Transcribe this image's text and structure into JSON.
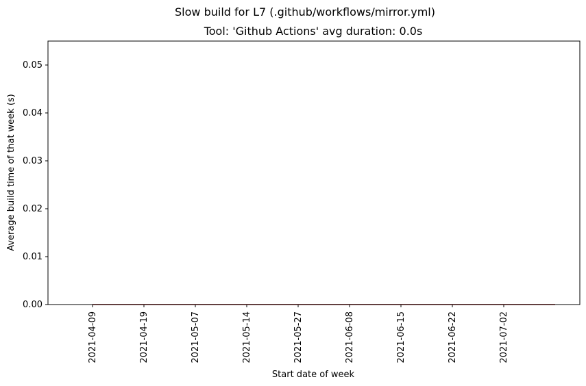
{
  "chart_data": {
    "type": "line",
    "suptitle": "Slow build for L7 (.github/workflows/mirror.yml)",
    "title": "Tool: 'Github Actions' avg duration: 0.0s",
    "xlabel": "Start date of week",
    "ylabel": "Average build time of that week (s)",
    "x": [
      "2021-04-09",
      "2021-04-19",
      "2021-05-07",
      "2021-05-14",
      "2021-05-27",
      "2021-06-08",
      "2021-06-15",
      "2021-06-22",
      "2021-07-02",
      ""
    ],
    "xticks": [
      "2021-04-09",
      "2021-04-19",
      "2021-05-07",
      "2021-05-14",
      "2021-05-27",
      "2021-06-08",
      "2021-06-15",
      "2021-06-22",
      "2021-07-02"
    ],
    "yticks": [
      "0.00",
      "0.01",
      "0.02",
      "0.03",
      "0.04",
      "0.05"
    ],
    "ylim": [
      0,
      0.055
    ],
    "grid": false,
    "series": [
      {
        "color": "#8b0000",
        "values": [
          0,
          0,
          0,
          0,
          0,
          0,
          0,
          0,
          0,
          0
        ]
      }
    ]
  }
}
